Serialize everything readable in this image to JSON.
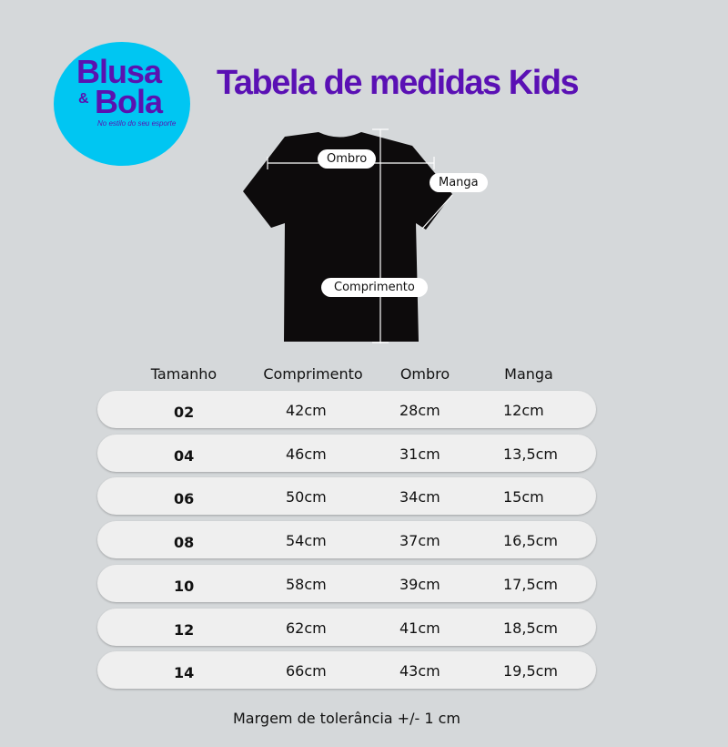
{
  "logo": {
    "line1": "Blusa",
    "amp": "&",
    "line2": "Bola",
    "tagline": "No estilo do seu esporte",
    "color": "#00c6f2"
  },
  "title": "Tabela de medidas Kids",
  "diagram": {
    "labels": {
      "shoulder": "Ombro",
      "sleeve": "Manga",
      "length": "Comprimento"
    }
  },
  "table": {
    "headers": [
      "Tamanho",
      "Comprimento",
      "Ombro",
      "Manga"
    ],
    "rows": [
      [
        "02",
        "42cm",
        "28cm",
        "12cm"
      ],
      [
        "04",
        "46cm",
        "31cm",
        "13,5cm"
      ],
      [
        "06",
        "50cm",
        "34cm",
        "15cm"
      ],
      [
        "08",
        "54cm",
        "37cm",
        "16,5cm"
      ],
      [
        "10",
        "58cm",
        "39cm",
        "17,5cm"
      ],
      [
        "12",
        "62cm",
        "41cm",
        "18,5cm"
      ],
      [
        "14",
        "66cm",
        "43cm",
        "19,5cm"
      ]
    ]
  },
  "footer": "Margem de tolerância +/-  1 cm"
}
